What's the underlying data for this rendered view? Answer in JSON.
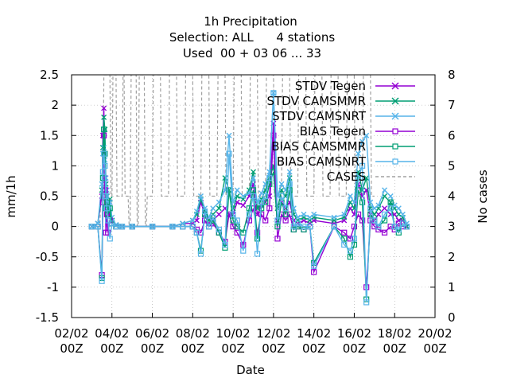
{
  "chart_data": {
    "type": "line",
    "title_lines": [
      "1h Precipitation",
      "Selection: ALL      4 stations",
      "Used  00 + 03 06 ... 33"
    ],
    "xlabel": "Date",
    "ylabel": "mm/1h",
    "y2label": "No cases",
    "ylim": [
      -1.5,
      2.5
    ],
    "y2lim": [
      0,
      8
    ],
    "xlim": [
      "2025-02-02 00Z",
      "2025-02-20 00Z"
    ],
    "xticks": [
      {
        "day": 2,
        "l1": "02/02",
        "l2": "00Z"
      },
      {
        "day": 4,
        "l1": "04/02",
        "l2": "00Z"
      },
      {
        "day": 6,
        "l1": "06/02",
        "l2": "00Z"
      },
      {
        "day": 8,
        "l1": "08/02",
        "l2": "00Z"
      },
      {
        "day": 10,
        "l1": "10/02",
        "l2": "00Z"
      },
      {
        "day": 12,
        "l1": "12/02",
        "l2": "00Z"
      },
      {
        "day": 14,
        "l1": "14/02",
        "l2": "00Z"
      },
      {
        "day": 16,
        "l1": "16/02",
        "l2": "00Z"
      },
      {
        "day": 18,
        "l1": "18/02",
        "l2": "00Z"
      },
      {
        "day": 20,
        "l1": "20/02",
        "l2": "00Z"
      }
    ],
    "yticks": [
      "-1.5",
      "-1",
      "-0.5",
      "0",
      "0.5",
      "1",
      "1.5",
      "2",
      "2.5"
    ],
    "y2ticks": [
      "0",
      "1",
      "2",
      "3",
      "4",
      "5",
      "6",
      "7",
      "8"
    ],
    "grid": true,
    "legend_position": "top-right",
    "series": [
      {
        "name": "STDV Tegen",
        "color": "#9400d3",
        "marker": "x",
        "axis": "y1",
        "dash": false,
        "x": [
          3.0,
          3.3,
          3.5,
          3.55,
          3.6,
          3.65,
          3.7,
          3.75,
          3.8,
          3.9,
          4.0,
          4.2,
          4.5,
          5.0,
          6.0,
          7.0,
          7.5,
          8.0,
          8.2,
          8.4,
          8.6,
          8.8,
          9.0,
          9.3,
          9.6,
          9.8,
          10.0,
          10.2,
          10.5,
          10.8,
          11.0,
          11.2,
          11.4,
          11.6,
          11.8,
          12.0,
          12.2,
          12.4,
          12.6,
          12.8,
          13.0,
          13.2,
          13.5,
          13.8,
          14.0,
          15.0,
          15.5,
          15.8,
          16.0,
          16.2,
          16.4,
          16.6,
          16.8,
          17.0,
          17.2,
          17.5,
          17.8,
          18.0,
          18.2,
          18.4,
          18.6
        ],
        "y": [
          0.0,
          0.05,
          0.5,
          1.5,
          1.95,
          0.8,
          0.6,
          0.5,
          0.2,
          0.4,
          0.1,
          0.02,
          0.0,
          0.0,
          0.0,
          0.0,
          0.05,
          0.05,
          0.1,
          0.4,
          0.2,
          0.05,
          0.1,
          0.2,
          0.3,
          0.2,
          0.2,
          0.4,
          0.35,
          0.5,
          0.7,
          0.2,
          0.35,
          0.4,
          0.5,
          1.7,
          0.1,
          0.4,
          0.3,
          0.4,
          0.1,
          0.05,
          0.1,
          0.05,
          0.1,
          0.05,
          0.1,
          0.3,
          0.2,
          0.7,
          0.5,
          0.6,
          0.2,
          0.1,
          0.2,
          0.3,
          0.2,
          0.2,
          0.1,
          0.1,
          0.0
        ]
      },
      {
        "name": "STDV CAMSMMR",
        "color": "#009e73",
        "marker": "x",
        "axis": "y1",
        "dash": false,
        "x": [
          3.0,
          3.3,
          3.5,
          3.55,
          3.6,
          3.65,
          3.7,
          3.75,
          3.8,
          3.9,
          4.0,
          4.2,
          4.5,
          5.0,
          6.0,
          7.0,
          7.5,
          8.0,
          8.2,
          8.4,
          8.6,
          8.8,
          9.0,
          9.3,
          9.6,
          9.8,
          10.0,
          10.2,
          10.5,
          10.8,
          11.0,
          11.2,
          11.4,
          11.6,
          11.8,
          12.0,
          12.2,
          12.4,
          12.6,
          12.8,
          13.0,
          13.2,
          13.5,
          13.8,
          14.0,
          15.0,
          15.5,
          15.8,
          16.0,
          16.2,
          16.4,
          16.6,
          16.8,
          17.0,
          17.2,
          17.5,
          17.8,
          18.0,
          18.2,
          18.4,
          18.6
        ],
        "y": [
          0.0,
          0.05,
          0.6,
          1.3,
          1.8,
          1.6,
          0.7,
          0.5,
          0.3,
          0.45,
          0.1,
          0.02,
          0.0,
          0.0,
          0.0,
          0.0,
          0.05,
          0.1,
          0.2,
          0.45,
          0.25,
          0.1,
          0.2,
          0.3,
          0.8,
          0.6,
          0.3,
          0.5,
          0.45,
          0.6,
          0.9,
          0.3,
          0.45,
          0.6,
          0.8,
          1.0,
          0.3,
          0.6,
          0.5,
          0.8,
          0.2,
          0.1,
          0.15,
          0.1,
          0.15,
          0.1,
          0.15,
          0.4,
          0.3,
          0.9,
          0.6,
          0.8,
          0.3,
          0.2,
          0.3,
          0.5,
          0.4,
          0.3,
          0.2,
          0.15,
          0.0
        ]
      },
      {
        "name": "STDV CAMSNRT",
        "color": "#56b4e9",
        "marker": "x",
        "axis": "y1",
        "dash": false,
        "x": [
          3.0,
          3.3,
          3.5,
          3.55,
          3.6,
          3.65,
          3.7,
          3.75,
          3.8,
          3.9,
          4.0,
          4.2,
          4.5,
          5.0,
          6.0,
          7.0,
          7.5,
          8.0,
          8.2,
          8.4,
          8.6,
          8.8,
          9.0,
          9.3,
          9.6,
          9.8,
          10.0,
          10.2,
          10.5,
          10.8,
          11.0,
          11.2,
          11.4,
          11.6,
          11.8,
          12.0,
          12.2,
          12.4,
          12.6,
          12.8,
          13.0,
          13.2,
          13.5,
          13.8,
          14.0,
          15.0,
          15.5,
          15.8,
          16.0,
          16.2,
          16.4,
          16.6,
          16.8,
          17.0,
          17.2,
          17.5,
          17.8,
          18.0,
          18.2,
          18.4,
          18.6
        ],
        "y": [
          0.0,
          0.05,
          0.7,
          1.2,
          1.3,
          1.1,
          0.8,
          0.6,
          0.4,
          0.4,
          0.15,
          0.03,
          0.0,
          0.0,
          0.0,
          0.0,
          0.05,
          0.1,
          0.25,
          0.5,
          0.3,
          0.15,
          0.3,
          0.4,
          0.6,
          1.5,
          0.4,
          0.6,
          0.5,
          0.55,
          0.8,
          0.4,
          0.55,
          0.7,
          0.9,
          2.2,
          0.5,
          0.7,
          0.6,
          0.9,
          0.3,
          0.15,
          0.2,
          0.15,
          0.2,
          0.15,
          0.2,
          0.5,
          0.4,
          1.2,
          1.4,
          1.5,
          0.4,
          0.3,
          0.35,
          0.6,
          0.5,
          0.35,
          0.3,
          0.2,
          0.05
        ]
      },
      {
        "name": "BIAS Tegen",
        "color": "#9400d3",
        "marker": "square",
        "axis": "y1",
        "dash": false,
        "x": [
          3.0,
          3.3,
          3.5,
          3.55,
          3.6,
          3.65,
          3.7,
          3.75,
          3.8,
          3.9,
          4.0,
          4.2,
          4.5,
          5.0,
          6.0,
          7.0,
          7.5,
          8.0,
          8.2,
          8.4,
          8.6,
          8.8,
          9.0,
          9.3,
          9.6,
          9.8,
          10.0,
          10.2,
          10.5,
          10.8,
          11.0,
          11.2,
          11.4,
          11.6,
          11.8,
          12.0,
          12.2,
          12.4,
          12.6,
          12.8,
          13.0,
          13.2,
          13.5,
          13.8,
          14.0,
          15.0,
          15.5,
          15.8,
          16.0,
          16.2,
          16.4,
          16.6,
          16.8,
          17.0,
          17.2,
          17.5,
          17.8,
          18.0,
          18.2,
          18.4,
          18.6
        ],
        "y": [
          0.0,
          0.0,
          -0.8,
          0.4,
          1.5,
          0.6,
          -0.1,
          0.2,
          -0.1,
          0.1,
          0.05,
          0.0,
          0.0,
          0.0,
          0.0,
          0.0,
          0.0,
          0.0,
          -0.05,
          -0.1,
          0.1,
          0.0,
          0.05,
          -0.1,
          -0.25,
          0.2,
          0.0,
          -0.1,
          -0.3,
          0.1,
          0.3,
          -0.1,
          0.2,
          0.1,
          0.3,
          1.5,
          -0.2,
          0.2,
          0.1,
          0.2,
          -0.05,
          0.0,
          -0.05,
          0.0,
          -0.75,
          0.0,
          -0.1,
          -0.2,
          0.0,
          0.2,
          0.1,
          -1.0,
          0.1,
          0.0,
          -0.05,
          -0.1,
          0.0,
          -0.05,
          0.05,
          0.0,
          0.0
        ]
      },
      {
        "name": "BIAS CAMSMMR",
        "color": "#009e73",
        "marker": "square",
        "axis": "y1",
        "dash": false,
        "x": [
          3.0,
          3.3,
          3.5,
          3.55,
          3.6,
          3.65,
          3.7,
          3.75,
          3.8,
          3.9,
          4.0,
          4.2,
          4.5,
          5.0,
          6.0,
          7.0,
          7.5,
          8.0,
          8.2,
          8.4,
          8.6,
          8.8,
          9.0,
          9.3,
          9.6,
          9.8,
          10.0,
          10.2,
          10.5,
          10.8,
          11.0,
          11.2,
          11.4,
          11.6,
          11.8,
          12.0,
          12.2,
          12.4,
          12.6,
          12.8,
          13.0,
          13.2,
          13.5,
          13.8,
          14.0,
          15.0,
          15.5,
          15.8,
          16.0,
          16.2,
          16.4,
          16.6,
          16.8,
          17.0,
          17.2,
          17.5,
          17.8,
          18.0,
          18.2,
          18.4,
          18.6
        ],
        "y": [
          0.0,
          0.0,
          -0.85,
          0.8,
          1.6,
          1.2,
          0.3,
          0.4,
          0.2,
          0.3,
          0.05,
          0.0,
          0.0,
          0.0,
          0.0,
          0.0,
          0.0,
          0.0,
          -0.1,
          -0.4,
          0.2,
          0.0,
          0.1,
          -0.1,
          -0.35,
          0.6,
          0.1,
          0.0,
          -0.1,
          0.3,
          0.6,
          -0.2,
          0.3,
          0.4,
          0.7,
          0.9,
          0.0,
          0.4,
          0.2,
          0.6,
          -0.05,
          0.0,
          -0.05,
          0.0,
          -0.6,
          0.0,
          -0.2,
          -0.5,
          -0.3,
          0.6,
          0.4,
          -1.2,
          0.2,
          0.1,
          0.0,
          0.1,
          0.4,
          0.0,
          -0.1,
          0.05,
          0.0
        ]
      },
      {
        "name": "BIAS CAMSNRT",
        "color": "#56b4e9",
        "marker": "square",
        "axis": "y1",
        "dash": false,
        "x": [
          3.0,
          3.3,
          3.5,
          3.55,
          3.6,
          3.65,
          3.7,
          3.75,
          3.8,
          3.9,
          4.0,
          4.2,
          4.5,
          5.0,
          6.0,
          7.0,
          7.5,
          8.0,
          8.2,
          8.4,
          8.6,
          8.8,
          9.0,
          9.3,
          9.6,
          9.8,
          10.0,
          10.2,
          10.5,
          10.8,
          11.0,
          11.2,
          11.4,
          11.6,
          11.8,
          12.0,
          12.2,
          12.4,
          12.6,
          12.8,
          13.0,
          13.2,
          13.5,
          13.8,
          14.0,
          15.0,
          15.5,
          15.8,
          16.0,
          16.2,
          16.4,
          16.6,
          16.8,
          17.0,
          17.2,
          17.5,
          17.8,
          18.0,
          18.2,
          18.4,
          18.6
        ],
        "y": [
          0.0,
          0.0,
          -0.9,
          0.9,
          1.2,
          1.0,
          0.5,
          0.3,
          0.1,
          -0.2,
          0.05,
          0.0,
          0.0,
          0.0,
          0.0,
          0.0,
          0.0,
          0.0,
          -0.1,
          -0.45,
          0.25,
          0.0,
          0.15,
          -0.05,
          -0.3,
          1.2,
          0.2,
          0.1,
          -0.4,
          0.2,
          0.5,
          -0.45,
          0.4,
          0.5,
          0.8,
          2.2,
          0.1,
          0.5,
          0.3,
          0.7,
          0.0,
          0.05,
          0.0,
          0.0,
          -0.65,
          0.0,
          -0.3,
          -0.4,
          -0.2,
          0.8,
          1.0,
          -1.25,
          0.3,
          0.1,
          0.0,
          0.2,
          0.3,
          0.0,
          -0.05,
          0.05,
          0.0
        ]
      },
      {
        "name": "CASES",
        "color": "#a0a0a0",
        "marker": "none",
        "axis": "y2",
        "dash": true,
        "x": [
          3.0,
          3.4,
          3.45,
          3.55,
          3.6,
          3.9,
          3.95,
          4.0,
          4.05,
          4.2,
          4.25,
          4.5,
          4.55,
          4.6,
          4.65,
          4.8,
          4.85,
          4.9,
          4.95,
          5.2,
          5.25,
          5.3,
          5.35,
          5.6,
          5.65,
          5.7,
          5.75,
          6.0,
          6.05,
          6.4,
          6.45,
          6.8,
          6.85,
          7.2,
          7.25,
          7.6,
          7.65,
          8.0,
          8.05,
          8.4,
          8.45,
          8.8,
          8.85,
          9.2,
          9.25,
          9.6,
          9.65,
          10.0,
          10.05,
          10.4,
          10.45,
          10.8,
          10.85,
          11.2,
          11.25,
          11.6,
          11.65,
          12.0,
          12.05,
          12.4,
          12.45,
          12.8,
          12.85,
          13.2,
          13.25,
          13.6,
          13.65,
          14.0,
          14.05,
          14.4,
          14.45,
          14.8,
          14.85,
          15.2,
          15.25,
          15.6,
          15.65,
          16.0,
          16.05,
          16.4,
          16.45,
          16.8,
          16.85,
          17.0
        ],
        "y": [
          3.0,
          3.0,
          4.0,
          4.0,
          8.0,
          8.0,
          4.0,
          4.0,
          8.0,
          8.0,
          4.0,
          4.0,
          8.0,
          8.0,
          4.0,
          4.0,
          3.0,
          3.0,
          8.0,
          8.0,
          3.0,
          3.0,
          8.0,
          8.0,
          3.0,
          3.0,
          4.0,
          4.0,
          8.0,
          8.0,
          4.0,
          4.0,
          8.0,
          8.0,
          4.0,
          4.0,
          8.0,
          8.0,
          4.0,
          4.0,
          8.0,
          8.0,
          4.0,
          4.0,
          8.0,
          8.0,
          4.0,
          4.0,
          8.0,
          8.0,
          4.0,
          4.0,
          8.0,
          8.0,
          4.0,
          4.0,
          8.0,
          8.0,
          4.0,
          4.0,
          8.0,
          8.0,
          4.0,
          4.0,
          8.0,
          8.0,
          4.0,
          4.0,
          8.0,
          8.0,
          4.0,
          4.0,
          8.0,
          8.0,
          4.0,
          4.0,
          8.0,
          8.0,
          4.0,
          4.0,
          8.0,
          8.0,
          4.0,
          4.0
        ]
      }
    ]
  }
}
